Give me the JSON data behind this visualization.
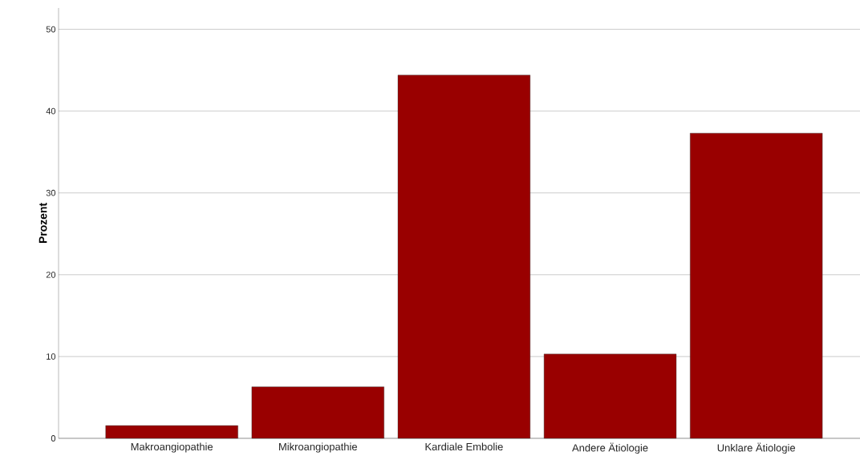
{
  "chart_data": {
    "type": "bar",
    "ylabel": "Prozent",
    "categories": [
      "Makroangiopathie",
      "Mikroangiopathie",
      "Kardiale Embolie",
      "Andere Ätiologie",
      "Unklare Ätiologie"
    ],
    "values": [
      1.56,
      6.3,
      44.4,
      10.3,
      37.3
    ],
    "color": "#990000",
    "ylim": [
      0,
      52.6
    ],
    "yticks": [
      0,
      10,
      20,
      30,
      40,
      50
    ],
    "grid": "y"
  }
}
